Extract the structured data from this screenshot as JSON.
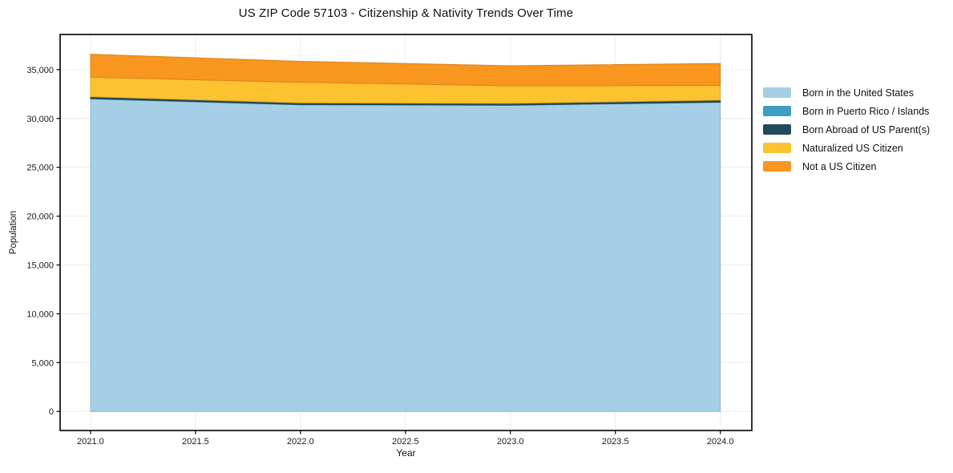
{
  "title": "US ZIP Code 57103 - Citizenship & Nativity Trends Over Time",
  "chart_data": {
    "type": "area",
    "stacked": true,
    "title": "US ZIP Code 57103 - Citizenship & Nativity Trends Over Time",
    "xlabel": "Year",
    "ylabel": "Population",
    "x": [
      2021,
      2022,
      2023,
      2024
    ],
    "series": [
      {
        "name": "Born in the United States",
        "color": "#a4cfe5",
        "values": [
          32000,
          31400,
          31350,
          31650
        ]
      },
      {
        "name": "Born in Puerto Rico / Islands",
        "color": "#3d9fc1",
        "values": [
          50,
          30,
          30,
          30
        ]
      },
      {
        "name": "Born Abroad of US Parent(s)",
        "color": "#234a5c",
        "values": [
          180,
          170,
          170,
          200
        ]
      },
      {
        "name": "Naturalized US Citizen",
        "color": "#fcc230",
        "values": [
          2000,
          2100,
          1800,
          1500
        ]
      },
      {
        "name": "Not a US Citizen",
        "color": "#f8961f",
        "values": [
          2350,
          2150,
          2050,
          2250
        ]
      }
    ],
    "x_ticks": [
      "2021.0",
      "2021.5",
      "2022.0",
      "2022.5",
      "2023.0",
      "2023.5",
      "2024.0"
    ],
    "y_ticks": [
      "0",
      "5,000",
      "10,000",
      "15,000",
      "20,000",
      "25,000",
      "30,000",
      "35,000"
    ],
    "xlim": [
      2020.855,
      2024.15
    ],
    "ylim": [
      -1950,
      38600
    ],
    "grid": true,
    "grid_color": "#ececec",
    "spine_color": "#000000",
    "tick_label_color": "#1a1a1a",
    "legend_position": "right"
  }
}
